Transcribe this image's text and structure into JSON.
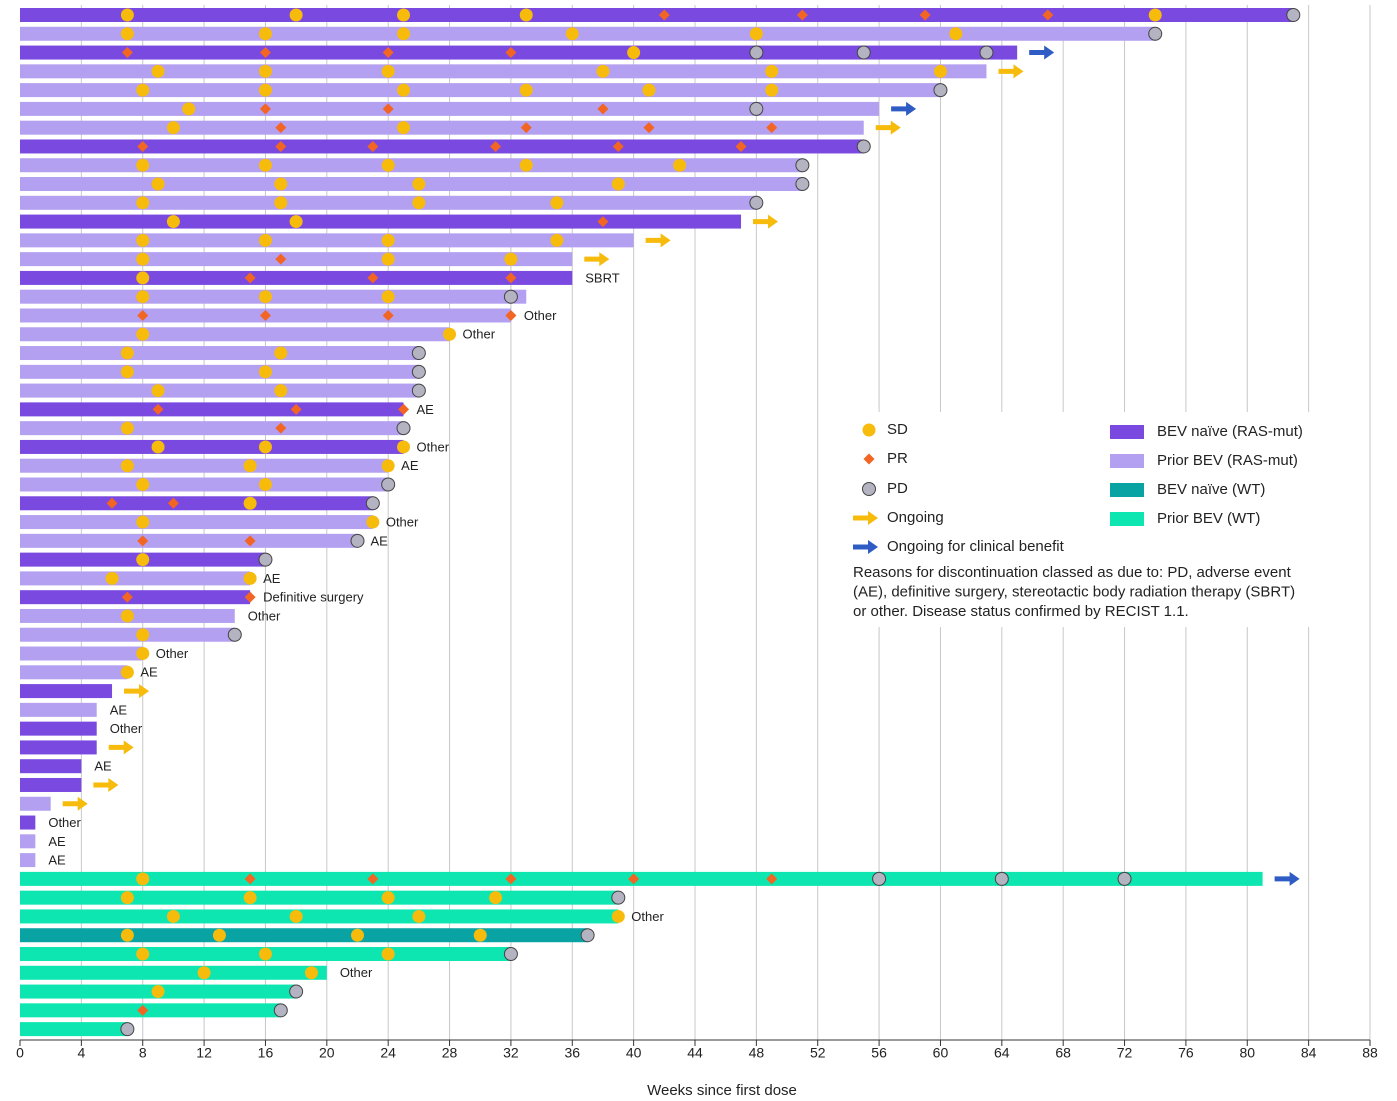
{
  "chart_data": {
    "type": "swimmer",
    "xlabel": "Weeks since first dose",
    "xlim": [
      0,
      88
    ],
    "xticks": [
      0,
      4,
      8,
      12,
      16,
      20,
      24,
      28,
      32,
      36,
      40,
      44,
      48,
      52,
      56,
      60,
      64,
      68,
      72,
      76,
      80,
      84,
      88
    ],
    "grid": true,
    "series": [
      {
        "name": "BEV naïve (RAS-mut)",
        "color": "#7a4ae0"
      },
      {
        "name": "Prior BEV (RAS-mut)",
        "color": "#b4a0f0"
      },
      {
        "name": "BEV naïve (WT)",
        "color": "#0aa3a3"
      },
      {
        "name": "Prior BEV (WT)",
        "color": "#0de6b0"
      }
    ],
    "markers": [
      {
        "name": "SD",
        "color": "#f7bb0c",
        "shape": "circle"
      },
      {
        "name": "PR",
        "color": "#f26522",
        "shape": "diamond"
      },
      {
        "name": "PD",
        "color": "#b3b3c2",
        "shape": "circle"
      }
    ],
    "arrows": [
      {
        "name": "Ongoing",
        "color": "#f7bb0c"
      },
      {
        "name": "Ongoing for clinical benefit",
        "color": "#2f5cc4"
      }
    ],
    "note": [
      "Reasons for discontinuation classed as due to: PD, adverse event",
      "(AE), definitive surgery, stereotactic body radiation therapy (SBRT)",
      "or other. Disease status confirmed by RECIST 1.1."
    ],
    "rows": [
      {
        "series": 0,
        "duration": 83,
        "events": [
          [
            7,
            18,
            25,
            33,
            74
          ],
          [
            42,
            51,
            59,
            67
          ],
          [
            83
          ]
        ]
      },
      {
        "series": 1,
        "duration": 74,
        "events": [
          [
            7,
            16,
            25,
            36,
            48,
            61
          ],
          [],
          [
            74
          ]
        ]
      },
      {
        "series": 0,
        "duration": 65,
        "events": [
          [
            40
          ],
          [
            7,
            16,
            24,
            32
          ],
          [
            48,
            55,
            63
          ]
        ],
        "arrow": 1
      },
      {
        "series": 1,
        "duration": 63,
        "events": [
          [
            9,
            16,
            24,
            38,
            49,
            60
          ],
          [],
          []
        ],
        "arrow": 0
      },
      {
        "series": 1,
        "duration": 60,
        "events": [
          [
            8,
            16,
            25,
            33,
            41,
            49
          ],
          [],
          [
            60
          ]
        ]
      },
      {
        "series": 1,
        "duration": 56,
        "events": [
          [
            11
          ],
          [
            16,
            24,
            38
          ],
          [
            48
          ]
        ],
        "arrow": 1
      },
      {
        "series": 1,
        "duration": 55,
        "events": [
          [
            10,
            25
          ],
          [
            17,
            33,
            41,
            49
          ],
          []
        ],
        "arrow": 0
      },
      {
        "series": 0,
        "duration": 55,
        "events": [
          [],
          [
            8,
            17,
            23,
            31,
            39,
            47
          ],
          [
            55
          ]
        ]
      },
      {
        "series": 1,
        "duration": 51,
        "events": [
          [
            8,
            16,
            24,
            33,
            43
          ],
          [],
          [
            51
          ]
        ]
      },
      {
        "series": 1,
        "duration": 51,
        "events": [
          [
            9,
            17,
            26,
            39
          ],
          [],
          [
            51
          ]
        ]
      },
      {
        "series": 1,
        "duration": 48,
        "events": [
          [
            8,
            17,
            26,
            35
          ],
          [],
          [
            48
          ]
        ]
      },
      {
        "series": 0,
        "duration": 47,
        "events": [
          [
            10,
            18
          ],
          [
            38
          ],
          []
        ],
        "arrow": 0
      },
      {
        "series": 1,
        "duration": 40,
        "events": [
          [
            8,
            16,
            24,
            35
          ],
          [],
          []
        ],
        "arrow": 0
      },
      {
        "series": 1,
        "duration": 36,
        "events": [
          [
            8,
            24,
            32
          ],
          [
            17
          ],
          []
        ],
        "arrow": 0
      },
      {
        "series": 0,
        "duration": 36,
        "events": [
          [
            8
          ],
          [
            15,
            23,
            32
          ],
          []
        ],
        "reason": "SBRT"
      },
      {
        "series": 1,
        "duration": 33,
        "events": [
          [
            8,
            16,
            24
          ],
          [],
          [
            32
          ]
        ]
      },
      {
        "series": 1,
        "duration": 32,
        "events": [
          [],
          [
            8,
            16,
            24,
            32
          ],
          []
        ],
        "reason": "Other"
      },
      {
        "series": 1,
        "duration": 28,
        "events": [
          [
            8,
            28
          ],
          [],
          []
        ],
        "reason": "Other"
      },
      {
        "series": 1,
        "duration": 26,
        "events": [
          [
            7,
            17
          ],
          [],
          [
            26
          ]
        ]
      },
      {
        "series": 1,
        "duration": 26,
        "events": [
          [
            7,
            16
          ],
          [],
          [
            26
          ]
        ]
      },
      {
        "series": 1,
        "duration": 26,
        "events": [
          [
            9,
            17
          ],
          [],
          [
            26
          ]
        ]
      },
      {
        "series": 0,
        "duration": 25,
        "events": [
          [],
          [
            9,
            18,
            25
          ],
          []
        ],
        "reason": "AE"
      },
      {
        "series": 1,
        "duration": 25,
        "events": [
          [
            7
          ],
          [
            17
          ],
          [
            25
          ]
        ]
      },
      {
        "series": 0,
        "duration": 25,
        "events": [
          [
            9,
            16,
            25
          ],
          [],
          []
        ],
        "reason": "Other"
      },
      {
        "series": 1,
        "duration": 24,
        "events": [
          [
            7,
            15,
            24
          ],
          [],
          []
        ],
        "reason": "AE"
      },
      {
        "series": 1,
        "duration": 24,
        "events": [
          [
            8,
            16
          ],
          [],
          [
            24
          ]
        ]
      },
      {
        "series": 0,
        "duration": 23,
        "events": [
          [
            15
          ],
          [
            6,
            10
          ],
          [
            23
          ]
        ]
      },
      {
        "series": 1,
        "duration": 23,
        "events": [
          [
            8,
            23
          ],
          [],
          []
        ],
        "reason": "Other"
      },
      {
        "series": 1,
        "duration": 22,
        "events": [
          [],
          [
            8,
            15
          ],
          [
            22
          ]
        ],
        "reason": "AE"
      },
      {
        "series": 0,
        "duration": 16,
        "events": [
          [
            8
          ],
          [],
          [
            16
          ]
        ]
      },
      {
        "series": 1,
        "duration": 15,
        "events": [
          [
            6,
            15
          ],
          [],
          []
        ],
        "reason": "AE"
      },
      {
        "series": 0,
        "duration": 15,
        "events": [
          [],
          [
            7,
            15
          ],
          []
        ],
        "reason": "Definitive surgery"
      },
      {
        "series": 1,
        "duration": 14,
        "events": [
          [
            7
          ],
          [],
          []
        ],
        "reason": "Other"
      },
      {
        "series": 1,
        "duration": 14,
        "events": [
          [
            8
          ],
          [],
          [
            14
          ]
        ]
      },
      {
        "series": 1,
        "duration": 8,
        "events": [
          [
            8
          ],
          [],
          []
        ],
        "reason": "Other"
      },
      {
        "series": 1,
        "duration": 7,
        "events": [
          [
            7
          ],
          [],
          []
        ],
        "reason": "AE"
      },
      {
        "series": 0,
        "duration": 6,
        "events": [
          [],
          [],
          []
        ],
        "arrow": 0
      },
      {
        "series": 1,
        "duration": 5,
        "events": [
          [],
          [],
          []
        ],
        "reason": "AE"
      },
      {
        "series": 0,
        "duration": 5,
        "events": [
          [],
          [],
          []
        ],
        "reason": "Other"
      },
      {
        "series": 0,
        "duration": 5,
        "events": [
          [],
          [],
          []
        ],
        "arrow": 0
      },
      {
        "series": 0,
        "duration": 4,
        "events": [
          [],
          [],
          []
        ],
        "reason": "AE"
      },
      {
        "series": 0,
        "duration": 4,
        "events": [
          [],
          [],
          []
        ],
        "arrow": 0
      },
      {
        "series": 1,
        "duration": 2,
        "events": [
          [],
          [],
          []
        ],
        "arrow": 0
      },
      {
        "series": 0,
        "duration": 1,
        "events": [
          [],
          [],
          []
        ],
        "reason": "Other"
      },
      {
        "series": 1,
        "duration": 1,
        "events": [
          [],
          [],
          []
        ],
        "reason": "AE"
      },
      {
        "series": 1,
        "duration": 1,
        "events": [
          [],
          [],
          []
        ],
        "reason": "AE"
      },
      {
        "series": 3,
        "duration": 81,
        "events": [
          [
            8
          ],
          [
            15,
            23,
            32,
            40,
            49
          ],
          [
            56,
            64,
            72
          ]
        ],
        "arrow": 1
      },
      {
        "series": 3,
        "duration": 39,
        "events": [
          [
            7,
            15,
            24,
            31
          ],
          [],
          [
            39
          ]
        ]
      },
      {
        "series": 3,
        "duration": 39,
        "events": [
          [
            10,
            18,
            26,
            39
          ],
          [],
          []
        ],
        "reason": "Other"
      },
      {
        "series": 2,
        "duration": 37,
        "events": [
          [
            7,
            13,
            22,
            30
          ],
          [],
          [
            37
          ]
        ]
      },
      {
        "series": 3,
        "duration": 32,
        "events": [
          [
            8,
            16,
            24
          ],
          [],
          [
            32
          ]
        ]
      },
      {
        "series": 3,
        "duration": 20,
        "events": [
          [
            12,
            19
          ],
          [],
          []
        ],
        "reason": "Other"
      },
      {
        "series": 3,
        "duration": 18,
        "events": [
          [
            9
          ],
          [],
          [
            18
          ]
        ]
      },
      {
        "series": 3,
        "duration": 17,
        "events": [
          [],
          [
            8
          ],
          [
            17
          ]
        ]
      },
      {
        "series": 3,
        "duration": 7,
        "events": [
          [],
          [],
          [
            7
          ]
        ]
      }
    ]
  }
}
